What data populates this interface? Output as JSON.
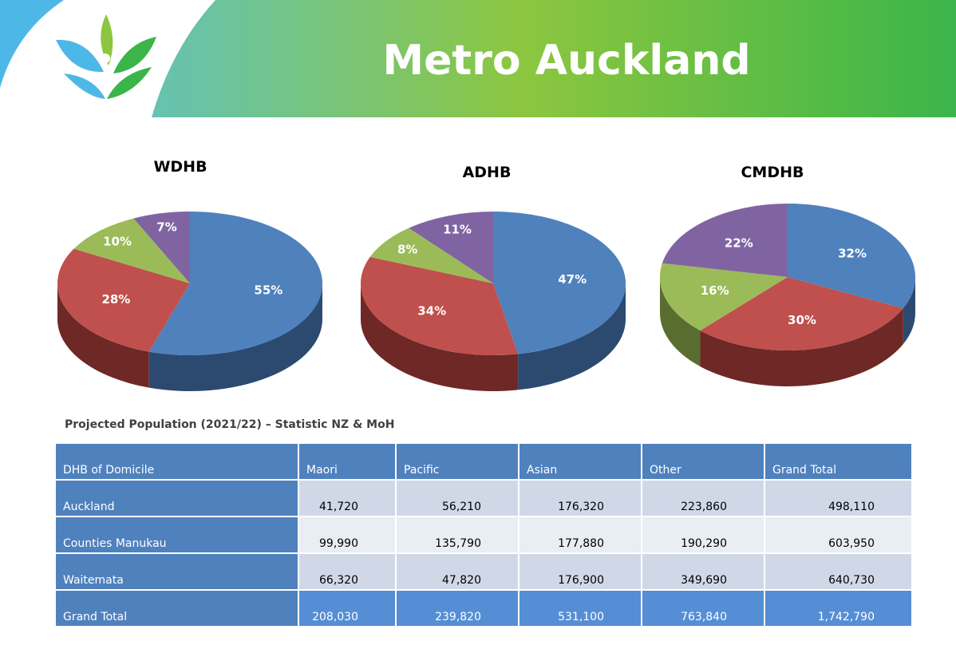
{
  "page_title": "Metro Auckland",
  "colors": {
    "blue": "#4f81bd",
    "red": "#c0504d",
    "green": "#9bbb59",
    "purple": "#8064a2"
  },
  "chart_data": [
    {
      "type": "pie",
      "title": "WDHB",
      "values": [
        55,
        28,
        10,
        7
      ],
      "labels": [
        "55%",
        "28%",
        "10%",
        "7%"
      ]
    },
    {
      "type": "pie",
      "title": "ADHB",
      "values": [
        47,
        34,
        8,
        11
      ],
      "labels": [
        "47%",
        "34%",
        "8%",
        "11%"
      ]
    },
    {
      "type": "pie",
      "title": "CMDHB",
      "values": [
        32,
        30,
        16,
        22
      ],
      "labels": [
        "32%",
        "30%",
        "16%",
        "22%"
      ]
    }
  ],
  "table": {
    "caption": "Projected Population (2021/22) – Statistic NZ & MoH",
    "headers": [
      "DHB of Domicile",
      "Maori",
      "Pacific",
      "Asian",
      "Other",
      "Grand Total"
    ],
    "rows": [
      [
        "Auckland",
        "41,720",
        "56,210",
        "176,320",
        "223,860",
        "498,110"
      ],
      [
        "Counties Manukau",
        "99,990",
        "135,790",
        "177,880",
        "190,290",
        "603,950"
      ],
      [
        "Waitemata",
        "66,320",
        "47,820",
        "176,900",
        "349,690",
        "640,730"
      ]
    ],
    "total": [
      "Grand Total",
      "208,030",
      "239,820",
      "531,100",
      "763,840",
      "1,742,790"
    ]
  }
}
